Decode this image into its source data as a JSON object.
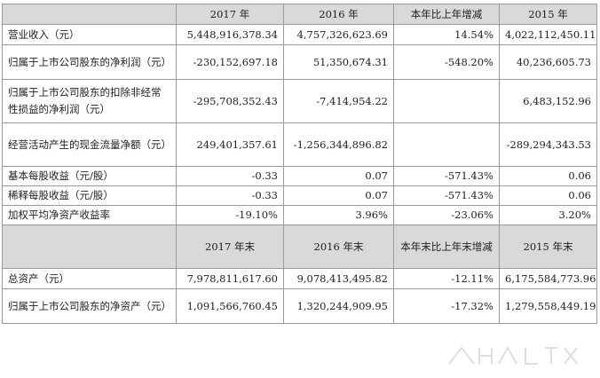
{
  "header1": {
    "col1": "2017 年",
    "col2": "2016 年",
    "col3": "本年比上年增减",
    "col4": "2015 年"
  },
  "rows1": [
    {
      "label": "营业收入（元）",
      "v2017": "5,448,916,378.34",
      "v2016": "4,757,326,623.69",
      "change": "14.54%",
      "v2015": "4,022,112,450.11"
    },
    {
      "label": "归属于上市公司股东的净利润（元）",
      "v2017": "-230,152,697.18",
      "v2016": "51,350,674.31",
      "change": "-548.20%",
      "v2015": "40,236,605.73"
    },
    {
      "label": "归属于上市公司股东的扣除非经常性损益的净利润（元）",
      "v2017": "-295,708,352.43",
      "v2016": "-7,414,954.22",
      "change": "",
      "v2015": "6,483,152.96"
    },
    {
      "label": "经营活动产生的现金流量净额（元）",
      "v2017": "249,401,357.61",
      "v2016": "-1,256,344,896.82",
      "change": "",
      "v2015": "-289,294,343.53"
    },
    {
      "label": "基本每股收益（元/股）",
      "v2017": "-0.33",
      "v2016": "0.07",
      "change": "-571.43%",
      "v2015": "0.06"
    },
    {
      "label": "稀释每股收益（元/股）",
      "v2017": "-0.33",
      "v2016": "0.07",
      "change": "-571.43%",
      "v2015": "0.06"
    },
    {
      "label": "加权平均净资产收益率",
      "v2017": "-19.10%",
      "v2016": "3.96%",
      "change": "-23.06%",
      "v2015": "3.20%"
    }
  ],
  "header2": {
    "col1": "2017 年末",
    "col2": "2016 年末",
    "col3": "本年末比上年末增减",
    "col4": "2015 年末"
  },
  "rows2": [
    {
      "label": "总资产（元）",
      "v2017": "7,978,811,617.60",
      "v2016": "9,078,413,495.82",
      "change": "-12.11%",
      "v2015": "6,175,584,773.96"
    },
    {
      "label": "归属于上市公司股东的净资产（元）",
      "v2017": "1,091,566,760.45",
      "v2016": "1,320,244,909.95",
      "change": "-17.32%",
      "v2015": "1,279,558,449.19"
    }
  ]
}
